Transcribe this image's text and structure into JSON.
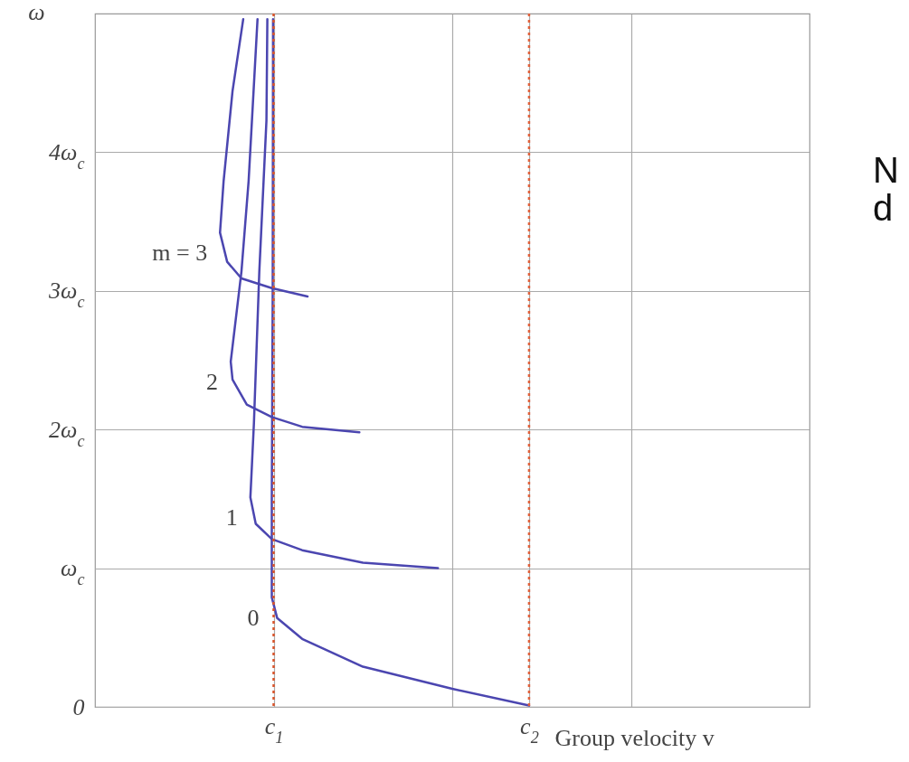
{
  "chart_data": {
    "type": "line",
    "xlabel": "Group velocity v",
    "ylabel": "ω",
    "xlim": [
      0,
      4
    ],
    "ylim": [
      0,
      5
    ],
    "xticks": [
      {
        "value": 1,
        "label": "c$_{1}$"
      },
      {
        "value": 2,
        "label": null
      },
      {
        "value": 2.43,
        "label": "c$_{2}$"
      },
      {
        "value": 3,
        "label": null
      }
    ],
    "yticks": [
      0,
      {
        "value": 1,
        "label": "ω$_{c}$"
      },
      {
        "value": 2,
        "label": "2ω$_{c}$"
      },
      {
        "value": 3,
        "label": "3ω$_{c}$"
      },
      {
        "value": 4,
        "label": "4ω$_{c}$"
      }
    ],
    "grid": true,
    "marker": "none",
    "line_style": "solid",
    "series": [
      {
        "name": "0",
        "color": "#4b46b0",
        "x": [
          2.43,
          2.0,
          1.5,
          1.16,
          1.02,
          0.99,
          0.99,
          0.995,
          0.997
        ],
        "values": [
          0.01,
          0.13,
          0.29,
          0.49,
          0.64,
          0.79,
          1.5,
          3,
          4.96
        ]
      },
      {
        "name": "1",
        "color": "#4b46b0",
        "x": [
          1.92,
          1.5,
          1.16,
          0.99,
          0.9,
          0.87,
          0.89,
          0.92,
          0.96,
          0.965
        ],
        "values": [
          1.0,
          1.04,
          1.13,
          1.21,
          1.32,
          1.51,
          2.05,
          3.14,
          4.23,
          4.96
        ]
      },
      {
        "name": "2",
        "color": "#4b46b0",
        "x": [
          1.48,
          1.16,
          0.99,
          0.85,
          0.77,
          0.76,
          0.82,
          0.86,
          0.91
        ],
        "values": [
          1.98,
          2.02,
          2.09,
          2.18,
          2.36,
          2.49,
          3.14,
          3.79,
          4.96
        ]
      },
      {
        "name": "m = 3",
        "color": "#4b46b0",
        "x": [
          1.19,
          0.99,
          0.82,
          0.74,
          0.7,
          0.72,
          0.77,
          0.83
        ],
        "values": [
          2.96,
          3.02,
          3.09,
          3.21,
          3.42,
          3.79,
          4.44,
          4.96
        ]
      }
    ],
    "ref_lines": [
      {
        "axis": "x",
        "value": 1,
        "color": "#d9542b",
        "line_style": "dotted"
      },
      {
        "axis": "x",
        "value": 2.43,
        "color": "#e0603a",
        "line_style": "dotted"
      }
    ],
    "annotations": [
      "N",
      "d"
    ]
  }
}
